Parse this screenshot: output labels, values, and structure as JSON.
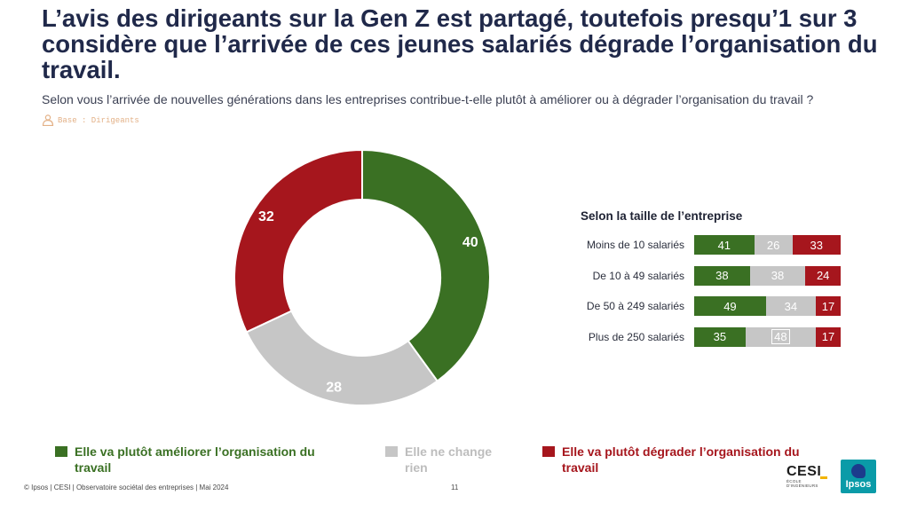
{
  "title": "L’avis des dirigeants sur la Gen Z est partagé, toutefois presqu’1 sur 3 considère que l’arrivée de ces jeunes salariés dégrade l’organisation du travail.",
  "subtitle": "Selon vous l’arrivée de nouvelles générations dans les entreprises contribue-t-elle plutôt à améliorer ou à dégrader l’organisation du travail ?",
  "base_label": "Base : Dirigeants",
  "base_icon": "person-icon",
  "colors": {
    "improve": "#3a7023",
    "unchanged": "#c6c6c6",
    "degrade": "#a6161d"
  },
  "chart_data": [
    {
      "type": "pie",
      "variant": "donut",
      "categories": [
        "Elle va plutôt améliorer l’organisation du travail",
        "Elle ne change rien",
        "Elle va plutôt dégrader l’organisation du travail"
      ],
      "values": [
        40,
        28,
        32
      ],
      "labels": [
        "40",
        "28",
        "32"
      ],
      "colors": [
        "#3a7023",
        "#c6c6c6",
        "#a6161d"
      ]
    },
    {
      "type": "bar",
      "orientation": "horizontal",
      "stacked": true,
      "title": "Selon la taille de l’entreprise",
      "categories": [
        "Moins de 10 salariés",
        "De 10 à 49 salariés",
        "De 50 à 249 salariés",
        "Plus de 250 salariés"
      ],
      "series": [
        {
          "name": "Elle va plutôt améliorer l’organisation du travail",
          "values": [
            41,
            38,
            49,
            35
          ],
          "labels": [
            "41",
            "38",
            "49",
            "35"
          ]
        },
        {
          "name": "Elle ne change rien",
          "values": [
            26,
            38,
            34,
            48
          ],
          "labels": [
            "26",
            "38",
            "34",
            "48"
          ]
        },
        {
          "name": "Elle va plutôt dégrader l’organisation du travail",
          "values": [
            33,
            24,
            17,
            17
          ],
          "labels": [
            "33",
            "24",
            "17",
            "17"
          ]
        }
      ]
    }
  ],
  "breakdown": {
    "title": "Selon la taille de l’entreprise",
    "rows": [
      {
        "label": "Moins de 10 salariés",
        "improve": "41",
        "unchanged": "26",
        "degrade": "33"
      },
      {
        "label": "De 10 à 49 salariés",
        "improve": "38",
        "unchanged": "38",
        "degrade": "24"
      },
      {
        "label": "De 50 à 249 salariés",
        "improve": "49",
        "unchanged": "34",
        "degrade": "17"
      },
      {
        "label": "Plus de 250 salariés",
        "improve": "35",
        "unchanged": "48",
        "degrade": "17"
      }
    ]
  },
  "legend": {
    "improve": "Elle va plutôt améliorer l’organisation du travail",
    "unchanged": "Elle ne change rien",
    "degrade": "Elle va plutôt dégrader l’organisation du travail"
  },
  "footer": "© Ipsos | CESI | Observatoire sociétal des entreprises | Mai 2024",
  "page_number": "11",
  "logos": {
    "cesi": "CESI",
    "cesi_sub": "ÉCOLE D'INGÉNIEURS",
    "ipsos": "Ipsos"
  }
}
